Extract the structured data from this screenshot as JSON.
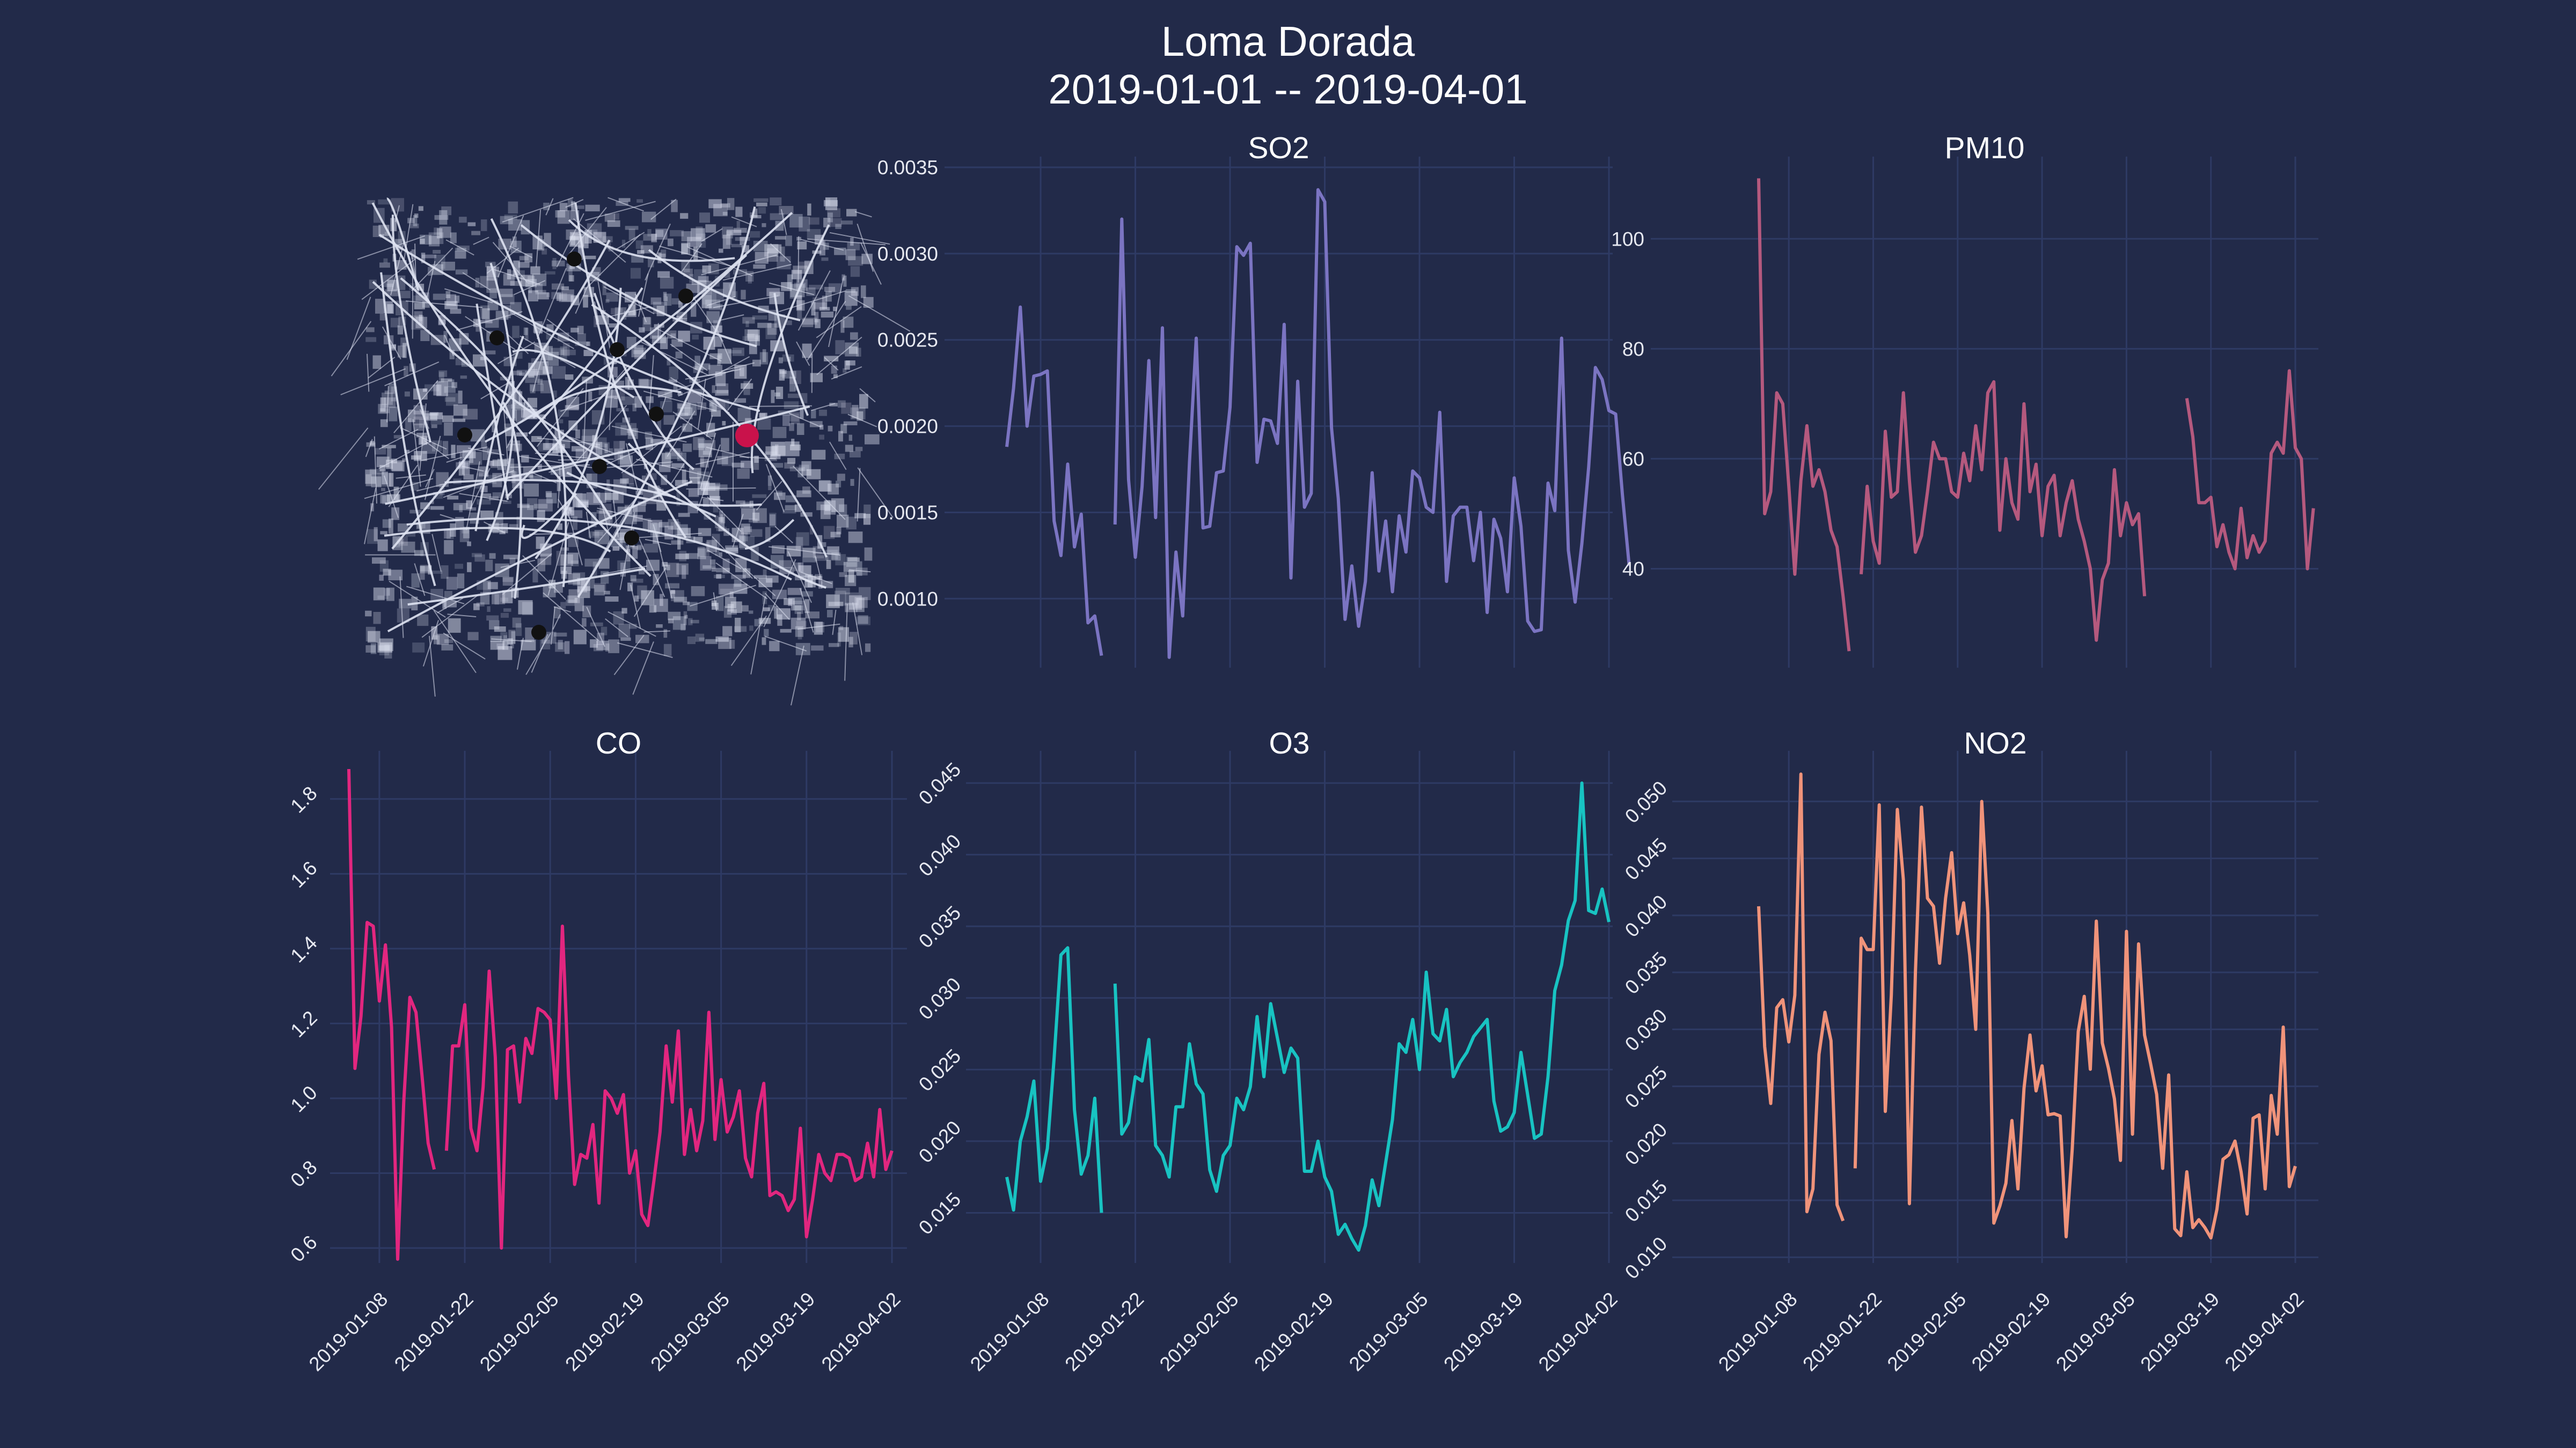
{
  "figure": {
    "title_line1": "Loma Dorada",
    "title_line2": "2019-01-01 -- 2019-04-01",
    "background": "#222a49",
    "grid_color": "#2e3a64"
  },
  "map": {
    "highlight_color": "#c9124b",
    "station_color": "#111111",
    "road_color": "#dfe3f2"
  },
  "chart_data": [
    {
      "type": "line",
      "title": "SO2",
      "color": "#7b74c2",
      "ylim": [
        0.0006,
        0.0035
      ],
      "yticks": [
        0.001,
        0.0015,
        0.002,
        0.0025,
        0.003,
        0.0035
      ],
      "ytick_labels": [
        "0.0010",
        "0.0015",
        "0.0020",
        "0.0025",
        "0.0030",
        "0.0035"
      ],
      "ytick_rotation": 0,
      "xticks": [
        "2019-01-08",
        "2019-01-22",
        "2019-02-05",
        "2019-02-19",
        "2019-03-05",
        "2019-03-19",
        "2019-04-02"
      ],
      "show_xtick_labels": false,
      "grid": true,
      "x_start": "2019-01-01",
      "values": [
        0.00188,
        0.00222,
        0.00269,
        0.002,
        0.00229,
        0.0023,
        0.00232,
        0.00145,
        0.00125,
        0.00178,
        0.0013,
        0.00149,
        0.00086,
        0.0009,
        0.00067,
        null,
        0.00143,
        0.0032,
        0.00169,
        0.00124,
        0.00165,
        0.00238,
        0.00147,
        0.00257,
        0.00066,
        0.00127,
        0.0009,
        0.00179,
        0.00251,
        0.00141,
        0.00142,
        0.00173,
        0.00174,
        0.00211,
        0.00304,
        0.00299,
        0.00306,
        0.00179,
        0.00204,
        0.00203,
        0.0019,
        0.00259,
        0.00112,
        0.00226,
        0.00153,
        0.00161,
        0.00337,
        0.0033,
        0.00199,
        0.00158,
        0.00088,
        0.00119,
        0.00084,
        0.0011,
        0.00173,
        0.00116,
        0.00145,
        0.00104,
        0.00148,
        0.00127,
        0.00174,
        0.0017,
        0.00153,
        0.0015,
        0.00208,
        0.0011,
        0.00148,
        0.00153,
        0.00153,
        0.00122,
        0.0015,
        0.00092,
        0.00146,
        0.00135,
        0.00104,
        0.0017,
        0.00142,
        0.00087,
        0.00081,
        0.00082,
        0.00167,
        0.00151,
        0.00251,
        0.00128,
        0.00098,
        0.00132,
        0.00176,
        0.00234,
        0.00227,
        0.00209,
        0.00207,
        0.0016,
        0.00119
      ]
    },
    {
      "type": "line",
      "title": "PM10",
      "color": "#b5597e",
      "ylim": [
        22,
        113
      ],
      "yticks": [
        40,
        60,
        80,
        100
      ],
      "ytick_labels": [
        "40",
        "60",
        "80",
        "100"
      ],
      "ytick_rotation": 0,
      "xticks": [
        "2019-01-08",
        "2019-01-22",
        "2019-02-05",
        "2019-02-19",
        "2019-03-05",
        "2019-03-19",
        "2019-04-02"
      ],
      "show_xtick_labels": false,
      "grid": true,
      "x_start": "2019-01-01",
      "values": [
        111,
        50,
        54,
        72,
        70,
        55,
        39,
        56,
        66,
        55,
        58,
        54,
        47,
        44,
        35,
        25,
        null,
        39,
        55,
        45,
        41,
        65,
        53,
        54,
        72,
        56,
        43,
        46,
        54,
        63,
        60,
        60,
        54,
        53,
        61,
        56,
        66,
        58,
        72,
        74,
        47,
        60,
        52,
        49,
        70,
        54,
        59,
        46,
        55,
        57,
        46,
        52,
        56,
        49,
        45,
        40,
        27,
        38,
        41,
        58,
        46,
        52,
        48,
        50,
        35,
        null,
        null,
        null,
        null,
        null,
        null,
        71,
        64,
        52,
        52,
        53,
        44,
        48,
        43,
        40,
        51,
        42,
        46,
        43,
        45,
        61,
        63,
        61,
        76,
        62,
        60,
        40,
        51
      ]
    },
    {
      "type": "line",
      "title": "CO",
      "color": "#e2267f",
      "ylim": [
        0.56,
        1.9
      ],
      "yticks": [
        0.6,
        0.8,
        1.0,
        1.2,
        1.4,
        1.6,
        1.8
      ],
      "ytick_labels": [
        "0.6",
        "0.8",
        "1.0",
        "1.2",
        "1.4",
        "1.6",
        "1.8"
      ],
      "ytick_rotation": -45,
      "xticks": [
        "2019-01-08",
        "2019-01-22",
        "2019-02-05",
        "2019-02-19",
        "2019-03-05",
        "2019-03-19",
        "2019-04-02"
      ],
      "show_xtick_labels": true,
      "grid": true,
      "x_start": "2019-01-01",
      "values": [
        1.88,
        1.08,
        1.22,
        1.47,
        1.46,
        1.26,
        1.41,
        1.19,
        0.57,
        0.99,
        1.27,
        1.23,
        1.06,
        0.88,
        0.81,
        null,
        0.86,
        1.14,
        1.14,
        1.25,
        0.92,
        0.86,
        1.03,
        1.34,
        1.11,
        0.6,
        1.13,
        1.14,
        0.99,
        1.16,
        1.12,
        1.24,
        1.23,
        1.21,
        1.0,
        1.46,
        1.06,
        0.77,
        0.85,
        0.84,
        0.93,
        0.72,
        1.02,
        1.0,
        0.96,
        1.01,
        0.8,
        0.86,
        0.69,
        0.66,
        0.78,
        0.91,
        1.14,
        0.99,
        1.18,
        0.85,
        0.97,
        0.86,
        0.94,
        1.23,
        0.89,
        1.05,
        0.91,
        0.95,
        1.02,
        0.84,
        0.79,
        0.96,
        1.04,
        0.74,
        0.75,
        0.74,
        0.7,
        0.73,
        0.92,
        0.63,
        0.73,
        0.85,
        0.8,
        0.78,
        0.85,
        0.85,
        0.84,
        0.78,
        0.79,
        0.88,
        0.79,
        0.97,
        0.81,
        0.86
      ]
    },
    {
      "type": "line",
      "title": "O3",
      "color": "#18c3c2",
      "ylim": [
        0.0115,
        0.0465
      ],
      "yticks": [
        0.015,
        0.02,
        0.025,
        0.03,
        0.035,
        0.04,
        0.045
      ],
      "ytick_labels": [
        "0.015",
        "0.020",
        "0.025",
        "0.030",
        "0.035",
        "0.040",
        "0.045"
      ],
      "ytick_rotation": -45,
      "xticks": [
        "2019-01-08",
        "2019-01-22",
        "2019-02-05",
        "2019-02-19",
        "2019-03-05",
        "2019-03-19",
        "2019-04-02"
      ],
      "show_xtick_labels": true,
      "grid": true,
      "x_start": "2019-01-01",
      "values": [
        0.0175,
        0.0152,
        0.02,
        0.0217,
        0.0242,
        0.0172,
        0.0195,
        0.0258,
        0.033,
        0.0335,
        0.0222,
        0.0177,
        0.019,
        0.023,
        0.015,
        null,
        0.031,
        0.0205,
        0.0213,
        0.0245,
        0.0242,
        0.0271,
        0.0197,
        0.019,
        0.0175,
        0.0224,
        0.0224,
        0.0268,
        0.024,
        0.0233,
        0.018,
        0.0165,
        0.019,
        0.0197,
        0.023,
        0.0222,
        0.0238,
        0.0287,
        0.0245,
        0.0296,
        0.0272,
        0.0248,
        0.0265,
        0.0258,
        0.0179,
        0.0179,
        0.02,
        0.0175,
        0.0165,
        0.0135,
        0.0142,
        0.0132,
        0.0124,
        0.0141,
        0.0173,
        0.0155,
        0.0185,
        0.0215,
        0.0268,
        0.0262,
        0.0285,
        0.025,
        0.0318,
        0.0275,
        0.027,
        0.0292,
        0.0245,
        0.0255,
        0.0262,
        0.0273,
        0.0279,
        0.0285,
        0.0228,
        0.0207,
        0.021,
        0.022,
        0.0262,
        0.0232,
        0.0202,
        0.0205,
        0.0245,
        0.0305,
        0.0323,
        0.0354,
        0.0368,
        0.045,
        0.0361,
        0.0359,
        0.0376,
        0.0353
      ]
    },
    {
      "type": "line",
      "title": "NO2",
      "color": "#f0937a",
      "ylim": [
        0.0095,
        0.0535
      ],
      "yticks": [
        0.01,
        0.015,
        0.02,
        0.025,
        0.03,
        0.035,
        0.04,
        0.045,
        0.05
      ],
      "ytick_labels": [
        "0.010",
        "0.015",
        "0.020",
        "0.025",
        "0.030",
        "0.035",
        "0.040",
        "0.045",
        "0.050"
      ],
      "ytick_rotation": -45,
      "xticks": [
        "2019-01-08",
        "2019-01-22",
        "2019-02-05",
        "2019-02-19",
        "2019-03-05",
        "2019-03-19",
        "2019-04-02"
      ],
      "show_xtick_labels": true,
      "grid": true,
      "x_start": "2019-01-01",
      "values": [
        0.0408,
        0.0285,
        0.0235,
        0.0319,
        0.0326,
        0.0289,
        0.033,
        0.0524,
        0.014,
        0.016,
        0.0278,
        0.0315,
        0.029,
        0.0146,
        0.0132,
        null,
        0.0178,
        0.038,
        0.037,
        0.037,
        0.0497,
        0.0228,
        0.033,
        0.0493,
        0.0431,
        0.0147,
        0.035,
        0.0495,
        0.0415,
        0.0408,
        0.0358,
        0.0415,
        0.0455,
        0.0384,
        0.0411,
        0.0365,
        0.03,
        0.05,
        0.0402,
        0.013,
        0.0145,
        0.0165,
        0.022,
        0.016,
        0.0248,
        0.0295,
        0.0246,
        0.0268,
        0.0225,
        0.0226,
        0.0224,
        0.0118,
        0.0195,
        0.0298,
        0.0329,
        0.0265,
        0.0395,
        0.0288,
        0.0266,
        0.0239,
        0.0185,
        0.0386,
        0.0208,
        0.0375,
        0.0295,
        0.027,
        0.0243,
        0.0178,
        0.026,
        0.0125,
        0.0119,
        0.0175,
        0.0126,
        0.0133,
        0.0126,
        0.0117,
        0.0142,
        0.0186,
        0.019,
        0.0202,
        0.0175,
        0.0138,
        0.0222,
        0.0225,
        0.016,
        0.0242,
        0.0208,
        0.0302,
        0.0162,
        0.018
      ]
    }
  ]
}
